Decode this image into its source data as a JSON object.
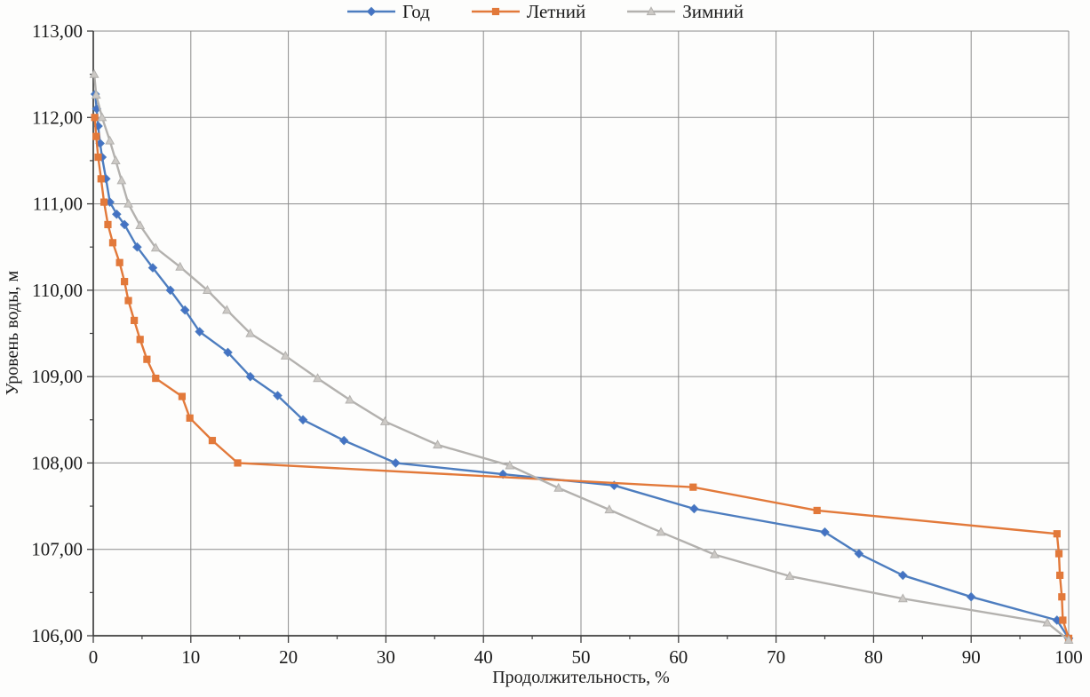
{
  "page": {
    "background": "#fdfdfc",
    "text_color": "#1a1a1a",
    "grid_color": "#8c8c8c",
    "axis_color": "#3f3f3f"
  },
  "chart_data": {
    "type": "line",
    "title": "",
    "xlabel": "Продолжительность, %",
    "ylabel": "Уровень воды, м",
    "xlim": [
      0,
      100
    ],
    "ylim": [
      106,
      113
    ],
    "grid": true,
    "legend_position": "top",
    "x_minor_tick_step": 5,
    "y_minor_tick_step": 0.5,
    "xticks": [
      {
        "value": 0,
        "label": "0"
      },
      {
        "value": 10,
        "label": "10"
      },
      {
        "value": 20,
        "label": "20"
      },
      {
        "value": 30,
        "label": "30"
      },
      {
        "value": 40,
        "label": "40"
      },
      {
        "value": 50,
        "label": "50"
      },
      {
        "value": 60,
        "label": "60"
      },
      {
        "value": 70,
        "label": "70"
      },
      {
        "value": 80,
        "label": "80"
      },
      {
        "value": 90,
        "label": "90"
      },
      {
        "value": 100,
        "label": "100"
      }
    ],
    "yticks": [
      {
        "value": 106,
        "label": "106,00"
      },
      {
        "value": 107,
        "label": "107,00"
      },
      {
        "value": 108,
        "label": "108,00"
      },
      {
        "value": 109,
        "label": "109,00"
      },
      {
        "value": 110,
        "label": "110,00"
      },
      {
        "value": 111,
        "label": "111,00"
      },
      {
        "value": 112,
        "label": "112,00"
      },
      {
        "value": 113,
        "label": "113,00"
      }
    ],
    "series": [
      {
        "name": "Год",
        "color": "#4d7dbf",
        "marker": "diamond",
        "marker_fill": "#4472c4",
        "points": [
          [
            0.2,
            112.27
          ],
          [
            0.35,
            112.1
          ],
          [
            0.5,
            111.9
          ],
          [
            0.7,
            111.7
          ],
          [
            0.9,
            111.54
          ],
          [
            1.3,
            111.29
          ],
          [
            1.7,
            111.02
          ],
          [
            2.4,
            110.88
          ],
          [
            3.2,
            110.76
          ],
          [
            4.5,
            110.5
          ],
          [
            6.1,
            110.26
          ],
          [
            7.9,
            110.0
          ],
          [
            9.4,
            109.77
          ],
          [
            10.9,
            109.52
          ],
          [
            13.8,
            109.28
          ],
          [
            16.1,
            109.0
          ],
          [
            18.9,
            108.78
          ],
          [
            21.5,
            108.5
          ],
          [
            25.7,
            108.26
          ],
          [
            31.0,
            108.0
          ],
          [
            42.0,
            107.87
          ],
          [
            53.4,
            107.74
          ],
          [
            61.6,
            107.47
          ],
          [
            75.0,
            107.2
          ],
          [
            78.5,
            106.95
          ],
          [
            83.0,
            106.7
          ],
          [
            90.0,
            106.45
          ],
          [
            98.8,
            106.18
          ],
          [
            100.0,
            105.97
          ]
        ]
      },
      {
        "name": "Летний",
        "color": "#e2793a",
        "marker": "square",
        "marker_fill": "#e2793a",
        "points": [
          [
            0.15,
            112.0
          ],
          [
            0.3,
            111.78
          ],
          [
            0.5,
            111.54
          ],
          [
            0.8,
            111.29
          ],
          [
            1.1,
            111.02
          ],
          [
            1.5,
            110.76
          ],
          [
            2.0,
            110.55
          ],
          [
            2.7,
            110.32
          ],
          [
            3.2,
            110.1
          ],
          [
            3.6,
            109.88
          ],
          [
            4.2,
            109.65
          ],
          [
            4.8,
            109.43
          ],
          [
            5.5,
            109.2
          ],
          [
            6.4,
            108.98
          ],
          [
            9.1,
            108.77
          ],
          [
            9.9,
            108.52
          ],
          [
            12.2,
            108.26
          ],
          [
            14.8,
            108.0
          ],
          [
            61.5,
            107.72
          ],
          [
            74.2,
            107.45
          ],
          [
            98.8,
            107.18
          ],
          [
            99.0,
            106.95
          ],
          [
            99.1,
            106.7
          ],
          [
            99.3,
            106.45
          ],
          [
            99.4,
            106.18
          ],
          [
            100.0,
            105.97
          ]
        ]
      },
      {
        "name": "Зимний",
        "color": "#b3b1ae",
        "marker": "triangle",
        "marker_fill": "#ccc9c5",
        "points": [
          [
            0.1,
            112.5
          ],
          [
            0.3,
            112.26
          ],
          [
            0.9,
            112.0
          ],
          [
            1.7,
            111.73
          ],
          [
            2.3,
            111.5
          ],
          [
            2.9,
            111.27
          ],
          [
            3.6,
            111.0
          ],
          [
            4.8,
            110.75
          ],
          [
            6.4,
            110.49
          ],
          [
            8.9,
            110.27
          ],
          [
            11.7,
            110.0
          ],
          [
            13.7,
            109.77
          ],
          [
            16.1,
            109.5
          ],
          [
            19.7,
            109.24
          ],
          [
            23.0,
            108.98
          ],
          [
            26.3,
            108.73
          ],
          [
            29.9,
            108.48
          ],
          [
            35.3,
            108.21
          ],
          [
            42.7,
            107.97
          ],
          [
            47.7,
            107.71
          ],
          [
            52.9,
            107.46
          ],
          [
            58.2,
            107.2
          ],
          [
            63.7,
            106.94
          ],
          [
            71.4,
            106.69
          ],
          [
            83.0,
            106.43
          ],
          [
            97.8,
            106.15
          ],
          [
            100.0,
            105.95
          ]
        ]
      }
    ]
  }
}
